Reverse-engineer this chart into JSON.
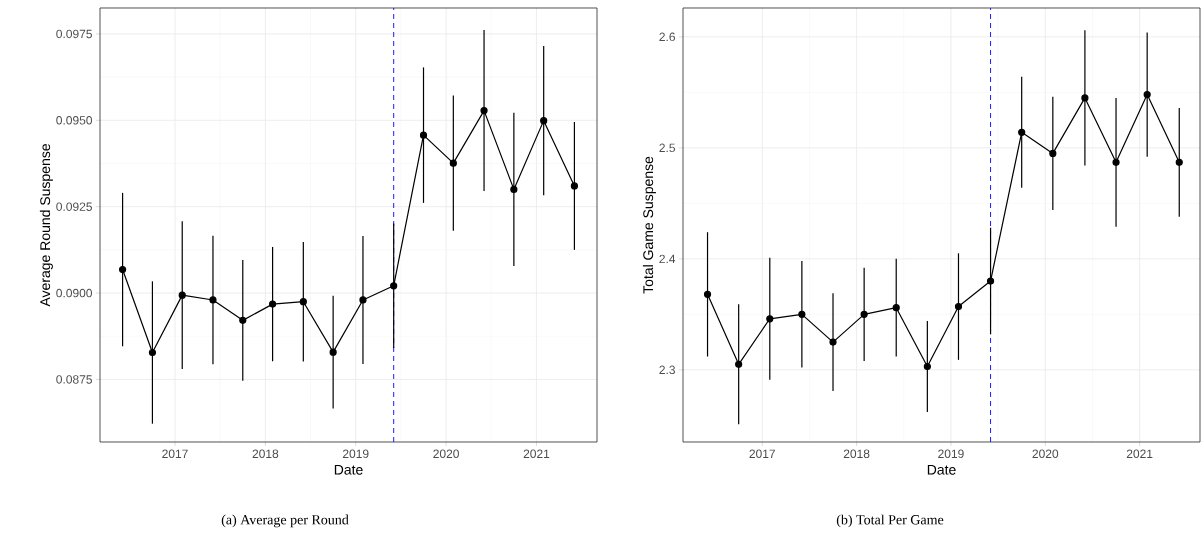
{
  "chart_data": [
    {
      "type": "line",
      "xlabel": "Date",
      "ylabel": "Average Round Suspense",
      "annotations": [
        "(a)  Average per Round"
      ],
      "x": [
        2016.42,
        2016.75,
        2017.08,
        2017.42,
        2017.75,
        2018.08,
        2018.42,
        2018.75,
        2019.08,
        2019.42,
        2019.75,
        2020.08,
        2020.42,
        2020.75,
        2021.08,
        2021.42
      ],
      "series": [
        {
          "color": "#000000",
          "values": [
            0.09068,
            0.08828,
            0.08994,
            0.0898,
            0.08921,
            0.08968,
            0.08975,
            0.08829,
            0.0898,
            0.09021,
            0.09457,
            0.09376,
            0.09528,
            0.093,
            0.09499,
            0.0931
          ],
          "errors": [
            0.00222,
            0.00206,
            0.00214,
            0.00186,
            0.00175,
            0.00165,
            0.00173,
            0.00163,
            0.00185,
            0.0018,
            0.00196,
            0.00196,
            0.00233,
            0.00222,
            0.00216,
            0.00185
          ]
        }
      ],
      "xlim": [
        2016.17,
        2021.67
      ],
      "ylim": [
        0.08569,
        0.09825
      ],
      "xticks": [
        2017,
        2018,
        2019,
        2020,
        2021
      ],
      "yticks": [
        {
          "value": 0.0875,
          "label": "0.0875"
        },
        {
          "value": 0.09,
          "label": "0.0900"
        },
        {
          "value": 0.0925,
          "label": "0.0925"
        },
        {
          "value": 0.095,
          "label": "0.0950"
        },
        {
          "value": 0.0975,
          "label": "0.0975"
        }
      ],
      "ref_lines": [
        {
          "axis": "x",
          "value": 2019.42,
          "color": "#0000ff",
          "line_style": "dashed"
        }
      ],
      "grid": true,
      "marker": "circle",
      "line_style": "solid"
    },
    {
      "type": "line",
      "xlabel": "Date",
      "ylabel": "Total Game Suspense",
      "annotations": [
        "(b) Total Per Game"
      ],
      "x": [
        2016.42,
        2016.75,
        2017.08,
        2017.42,
        2017.75,
        2018.08,
        2018.42,
        2018.75,
        2019.08,
        2019.42,
        2019.75,
        2020.08,
        2020.42,
        2020.75,
        2021.08,
        2021.42
      ],
      "series": [
        {
          "color": "#000000",
          "values": [
            2.368,
            2.305,
            2.346,
            2.35,
            2.325,
            2.35,
            2.356,
            2.303,
            2.357,
            2.38,
            2.514,
            2.495,
            2.545,
            2.487,
            2.548,
            2.487
          ],
          "errors": [
            0.056,
            0.054,
            0.055,
            0.048,
            0.044,
            0.042,
            0.044,
            0.041,
            0.048,
            0.048,
            0.05,
            0.051,
            0.061,
            0.058,
            0.056,
            0.049
          ]
        }
      ],
      "xlim": [
        2016.16,
        2021.64
      ],
      "ylim": [
        2.235,
        2.626
      ],
      "xticks": [
        2017,
        2018,
        2019,
        2020,
        2021
      ],
      "yticks": [
        2.3,
        2.4,
        2.5,
        2.6
      ],
      "ref_lines": [
        {
          "axis": "x",
          "value": 2019.42,
          "color": "#0000ff",
          "line_style": "dashed"
        }
      ],
      "grid": true,
      "marker": "circle",
      "line_style": "solid"
    }
  ]
}
